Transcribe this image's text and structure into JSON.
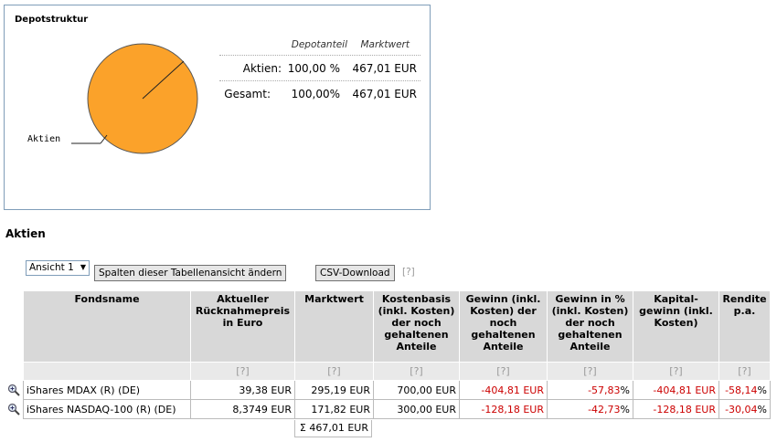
{
  "depot": {
    "title": "Depotstruktur",
    "pie_label": "Aktien",
    "header_share": "Depotanteil",
    "header_value": "Marktwert",
    "rows": [
      {
        "label": "Aktien:",
        "share": "100,00 %",
        "value": "467,01 EUR"
      },
      {
        "label": "Gesamt:",
        "share": "100,00%",
        "value": "467,01 EUR"
      }
    ],
    "pie_color": "#fba22a"
  },
  "section_title": "Aktien",
  "toolbar": {
    "view_select": "Ansicht 1",
    "change_columns": "Spalten dieser Tabellenansicht ändern",
    "csv_download": "CSV-Download",
    "help": "[?]"
  },
  "table": {
    "headers": [
      "Fondsname",
      "Aktueller Rücknahmepreis in Euro",
      "Marktwert",
      "Kostenbasis (inkl. Kosten) der noch gehaltenen Anteile",
      "Gewinn (inkl. Kosten) der noch gehaltenen Anteile",
      "Gewinn in % (inkl. Kosten) der noch gehaltenen Anteile",
      "Kapital-gewinn (inkl. Kosten)",
      "Rendite p.a."
    ],
    "help": "[?]",
    "rows": [
      {
        "name": "iShares MDAX (R) (DE)",
        "price": "39,38 EUR",
        "value": "295,19 EUR",
        "cost": "700,00 EUR",
        "gain": "-404,81 EUR",
        "gain_pct": "-57,83",
        "capital_gain": "-404,81 EUR",
        "yield": "-58,14"
      },
      {
        "name": "iShares NASDAQ-100 (R) (DE)",
        "price": "8,3749 EUR",
        "value": "171,82 EUR",
        "cost": "300,00 EUR",
        "gain": "-128,18 EUR",
        "gain_pct": "-42,73",
        "capital_gain": "-128,18 EUR",
        "yield": "-30,04"
      }
    ],
    "pct_sign": "%",
    "total": "Σ 467,01 EUR"
  }
}
